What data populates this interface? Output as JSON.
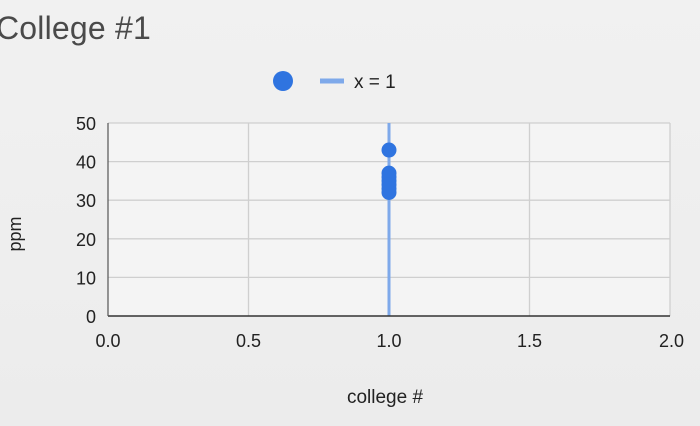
{
  "page": {
    "title": "College #1"
  },
  "chart_data": {
    "type": "scatter",
    "title": "",
    "xlabel": "college #",
    "ylabel": "ppm",
    "xlim": [
      0,
      2
    ],
    "ylim": [
      0,
      50
    ],
    "x_ticks": [
      "0.0",
      "0.5",
      "1.0",
      "1.5",
      "2.0"
    ],
    "y_ticks": [
      "0",
      "10",
      "20",
      "30",
      "40",
      "50"
    ],
    "grid": true,
    "legend": {
      "placement": "top-center",
      "entries": [
        {
          "kind": "point",
          "label": ""
        },
        {
          "kind": "line",
          "label": "x = 1"
        }
      ]
    },
    "series": [
      {
        "kind": "points",
        "color": "#2f74e0",
        "x": [
          1,
          1,
          1,
          1,
          1,
          1,
          1
        ],
        "y": [
          43,
          37,
          36,
          35,
          34,
          33,
          32
        ]
      }
    ],
    "reference_lines": [
      {
        "orientation": "vertical",
        "x": 1,
        "label": "x = 1",
        "color": "#7ea9ea"
      }
    ]
  }
}
